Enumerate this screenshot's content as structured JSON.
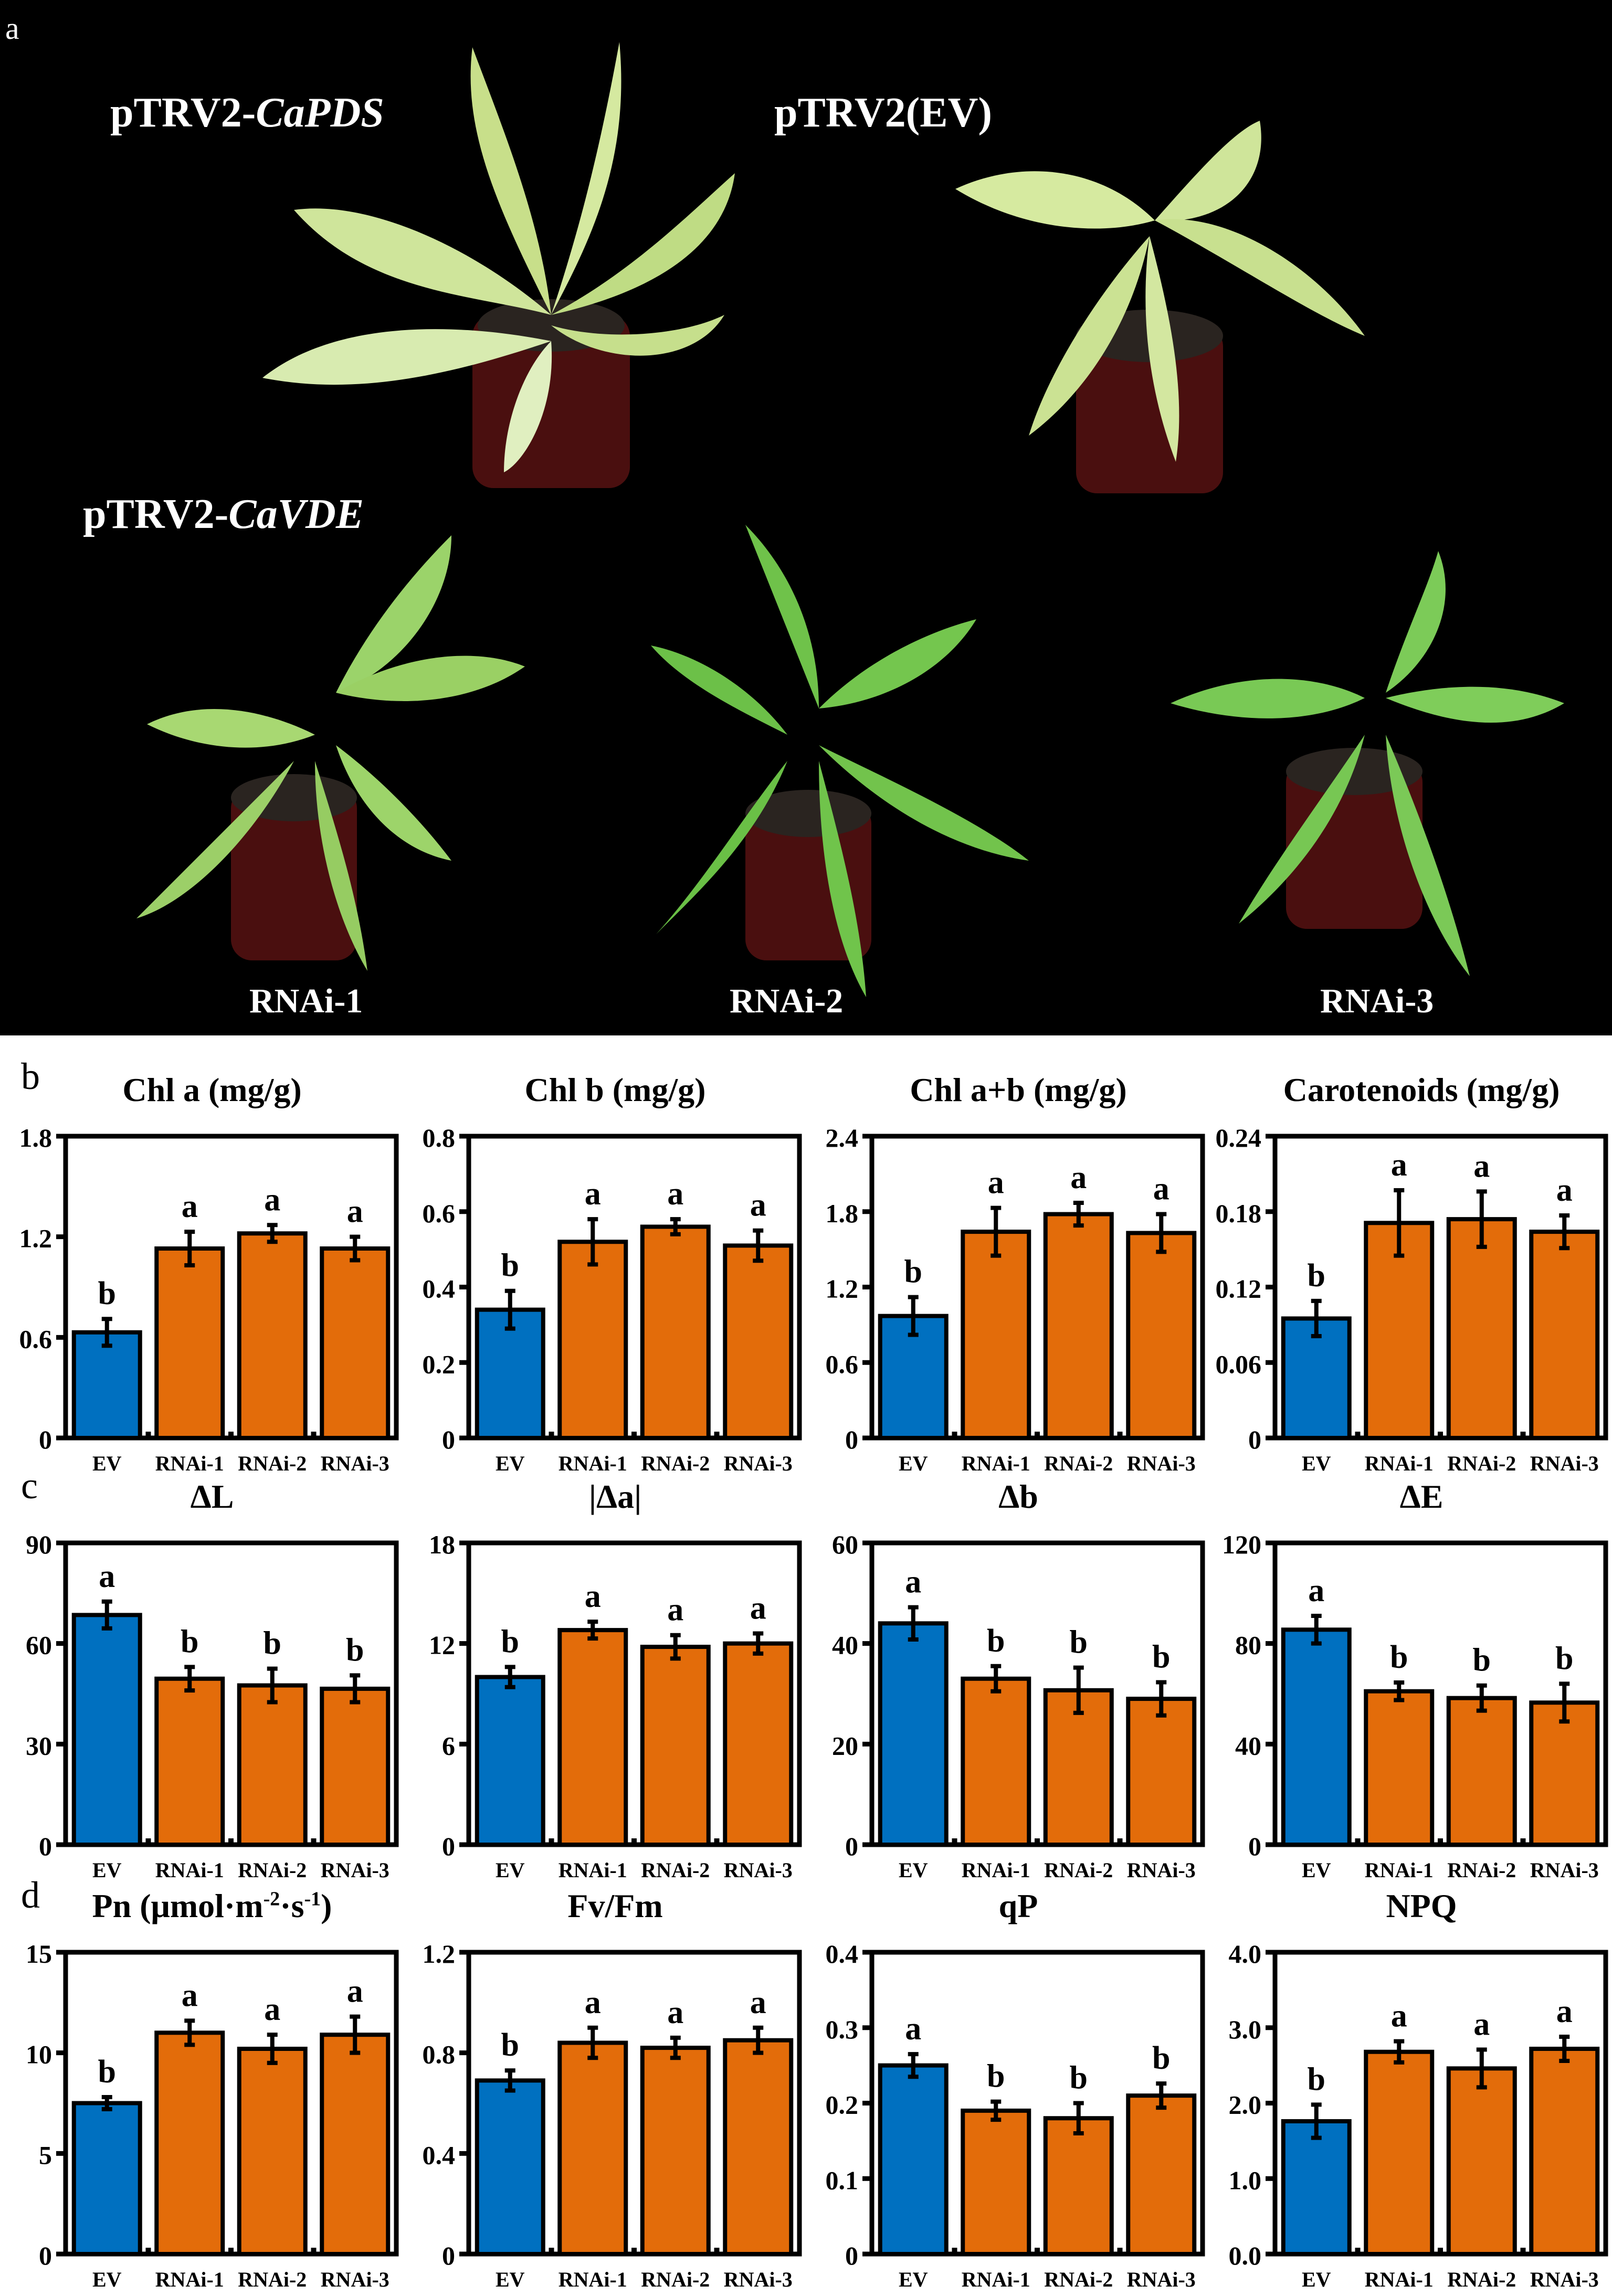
{
  "figure": {
    "panel_letters": {
      "a": "a",
      "b": "b",
      "c": "c",
      "d": "d"
    },
    "photo": {
      "labels": {
        "capds_prefix": "pTRV2-",
        "capds_gene": "CaPDS",
        "ev": "pTRV2(EV)",
        "cavde_prefix": "pTRV2-",
        "cavde_gene": "CaVDE",
        "rnai1": "RNAi-1",
        "rnai2": "RNAi-2",
        "rnai3": "RNAi-3"
      }
    },
    "colors": {
      "ev": "#0070C0",
      "rnai": "#E36C0A",
      "axis": "#000000",
      "photo_bg": "#000000"
    }
  },
  "chart_data": [
    {
      "id": "chl_a",
      "panel": "b",
      "type": "bar",
      "title": "Chl a (mg/g)",
      "title_parts": [
        "Chl a (mg/g)"
      ],
      "categories": [
        "EV",
        "RNAi-1",
        "RNAi-2",
        "RNAi-3"
      ],
      "values": [
        0.63,
        1.13,
        1.22,
        1.13
      ],
      "errors": [
        0.08,
        0.1,
        0.05,
        0.07
      ],
      "letters": [
        "b",
        "a",
        "a",
        "a"
      ],
      "ylim": [
        0,
        1.8
      ],
      "yticks": [
        "0",
        "0.6",
        "1.2",
        "1.8"
      ],
      "ytick_values": [
        0,
        0.6,
        1.2,
        1.8
      ],
      "xlabel": "",
      "ylabel": ""
    },
    {
      "id": "chl_b",
      "panel": "b",
      "type": "bar",
      "title": "Chl b (mg/g)",
      "categories": [
        "EV",
        "RNAi-1",
        "RNAi-2",
        "RNAi-3"
      ],
      "values": [
        0.34,
        0.52,
        0.56,
        0.51
      ],
      "errors": [
        0.05,
        0.06,
        0.02,
        0.04
      ],
      "letters": [
        "b",
        "a",
        "a",
        "a"
      ],
      "ylim": [
        0,
        0.8
      ],
      "yticks": [
        "0",
        "0.2",
        "0.4",
        "0.6",
        "0.8"
      ],
      "ytick_values": [
        0,
        0.2,
        0.4,
        0.6,
        0.8
      ],
      "xlabel": "",
      "ylabel": ""
    },
    {
      "id": "chl_ab",
      "panel": "b",
      "type": "bar",
      "title": "Chl a+b (mg/g)",
      "categories": [
        "EV",
        "RNAi-1",
        "RNAi-2",
        "RNAi-3"
      ],
      "values": [
        0.97,
        1.64,
        1.78,
        1.63
      ],
      "errors": [
        0.15,
        0.19,
        0.09,
        0.15
      ],
      "letters": [
        "b",
        "a",
        "a",
        "a"
      ],
      "ylim": [
        0,
        2.4
      ],
      "yticks": [
        "0",
        "0.6",
        "1.2",
        "1.8",
        "2.4"
      ],
      "ytick_values": [
        0,
        0.6,
        1.2,
        1.8,
        2.4
      ],
      "xlabel": "",
      "ylabel": ""
    },
    {
      "id": "carotenoids",
      "panel": "b",
      "type": "bar",
      "title": "Carotenoids (mg/g)",
      "categories": [
        "EV",
        "RNAi-1",
        "RNAi-2",
        "RNAi-3"
      ],
      "values": [
        0.095,
        0.171,
        0.174,
        0.164
      ],
      "errors": [
        0.014,
        0.026,
        0.022,
        0.013
      ],
      "letters": [
        "b",
        "a",
        "a",
        "a"
      ],
      "ylim": [
        0,
        0.24
      ],
      "yticks": [
        "0",
        "0.06",
        "0.12",
        "0.18",
        "0.24"
      ],
      "ytick_values": [
        0,
        0.06,
        0.12,
        0.18,
        0.24
      ],
      "xlabel": "",
      "ylabel": ""
    },
    {
      "id": "delta_l",
      "panel": "c",
      "type": "bar",
      "title": "ΔL",
      "categories": [
        "EV",
        "RNAi-1",
        "RNAi-2",
        "RNAi-3"
      ],
      "values": [
        68.5,
        49.5,
        47.5,
        46.5
      ],
      "errors": [
        4.0,
        3.5,
        5.0,
        4.0
      ],
      "letters": [
        "a",
        "b",
        "b",
        "b"
      ],
      "ylim": [
        0,
        90
      ],
      "yticks": [
        "0",
        "30",
        "60",
        "90"
      ],
      "ytick_values": [
        0,
        30,
        60,
        90
      ],
      "xlabel": "",
      "ylabel": ""
    },
    {
      "id": "delta_a",
      "panel": "c",
      "type": "bar",
      "title": "|Δa|",
      "categories": [
        "EV",
        "RNAi-1",
        "RNAi-2",
        "RNAi-3"
      ],
      "values": [
        10.0,
        12.8,
        11.8,
        12.0
      ],
      "errors": [
        0.6,
        0.5,
        0.7,
        0.6
      ],
      "letters": [
        "b",
        "a",
        "a",
        "a"
      ],
      "ylim": [
        0,
        18
      ],
      "yticks": [
        "0",
        "6",
        "12",
        "18"
      ],
      "ytick_values": [
        0,
        6,
        12,
        18
      ],
      "xlabel": "",
      "ylabel": ""
    },
    {
      "id": "delta_b",
      "panel": "c",
      "type": "bar",
      "title": "Δb",
      "categories": [
        "EV",
        "RNAi-1",
        "RNAi-2",
        "RNAi-3"
      ],
      "values": [
        44.0,
        33.0,
        30.7,
        29.0
      ],
      "errors": [
        3.2,
        2.5,
        4.5,
        3.3
      ],
      "letters": [
        "a",
        "b",
        "b",
        "b"
      ],
      "ylim": [
        0,
        60
      ],
      "yticks": [
        "0",
        "20",
        "40",
        "60"
      ],
      "ytick_values": [
        0,
        20,
        40,
        60
      ],
      "xlabel": "",
      "ylabel": ""
    },
    {
      "id": "delta_e",
      "panel": "c",
      "type": "bar",
      "title": "ΔE",
      "categories": [
        "EV",
        "RNAi-1",
        "RNAi-2",
        "RNAi-3"
      ],
      "values": [
        85.5,
        61.0,
        58.3,
        56.5
      ],
      "errors": [
        5.5,
        3.5,
        5.0,
        7.5
      ],
      "letters": [
        "a",
        "b",
        "b",
        "b"
      ],
      "ylim": [
        0,
        120
      ],
      "yticks": [
        "0",
        "40",
        "80",
        "120"
      ],
      "ytick_values": [
        0,
        40,
        80,
        120
      ],
      "xlabel": "",
      "ylabel": ""
    },
    {
      "id": "pn",
      "panel": "d",
      "type": "bar",
      "title": "Pn (μmol·m-2·s-1)",
      "title_html": {
        "main": "Pn (μmol·m",
        "sup1": "-2",
        "mid": "·s",
        "sup2": "-1",
        "end": ")"
      },
      "categories": [
        "EV",
        "RNAi-1",
        "RNAi-2",
        "RNAi-3"
      ],
      "values": [
        7.5,
        11.0,
        10.2,
        10.9
      ],
      "errors": [
        0.3,
        0.6,
        0.7,
        0.9
      ],
      "letters": [
        "b",
        "a",
        "a",
        "a"
      ],
      "ylim": [
        0,
        15
      ],
      "yticks": [
        "0",
        "5",
        "10",
        "15"
      ],
      "ytick_values": [
        0,
        5,
        10,
        15
      ],
      "xlabel": "",
      "ylabel": ""
    },
    {
      "id": "fvfm",
      "panel": "d",
      "type": "bar",
      "title": "Fv/Fm",
      "categories": [
        "EV",
        "RNAi-1",
        "RNAi-2",
        "RNAi-3"
      ],
      "values": [
        0.69,
        0.84,
        0.82,
        0.85
      ],
      "errors": [
        0.04,
        0.06,
        0.04,
        0.05
      ],
      "letters": [
        "b",
        "a",
        "a",
        "a"
      ],
      "ylim": [
        0,
        1.2
      ],
      "yticks": [
        "0",
        "0.4",
        "0.8",
        "1.2"
      ],
      "ytick_values": [
        0,
        0.4,
        0.8,
        1.2
      ],
      "xlabel": "",
      "ylabel": ""
    },
    {
      "id": "qp",
      "panel": "d",
      "type": "bar",
      "title": "qP",
      "categories": [
        "EV",
        "RNAi-1",
        "RNAi-2",
        "RNAi-3"
      ],
      "values": [
        0.25,
        0.19,
        0.18,
        0.21
      ],
      "errors": [
        0.015,
        0.012,
        0.02,
        0.016
      ],
      "letters": [
        "a",
        "b",
        "b",
        "b"
      ],
      "ylim": [
        0,
        0.4
      ],
      "yticks": [
        "0",
        "0.1",
        "0.2",
        "0.3",
        "0.4"
      ],
      "ytick_values": [
        0,
        0.1,
        0.2,
        0.3,
        0.4
      ],
      "xlabel": "",
      "ylabel": ""
    },
    {
      "id": "npq",
      "panel": "d",
      "type": "bar",
      "title": "NPQ",
      "categories": [
        "EV",
        "RNAi-1",
        "RNAi-2",
        "RNAi-3"
      ],
      "values": [
        1.76,
        2.68,
        2.46,
        2.72
      ],
      "errors": [
        0.22,
        0.14,
        0.25,
        0.16
      ],
      "letters": [
        "b",
        "a",
        "a",
        "a"
      ],
      "ylim": [
        0,
        4.0
      ],
      "yticks": [
        "0.0",
        "1.0",
        "2.0",
        "3.0",
        "4.0"
      ],
      "ytick_values": [
        0,
        1,
        2,
        3,
        4
      ],
      "xlabel": "",
      "ylabel": ""
    }
  ]
}
